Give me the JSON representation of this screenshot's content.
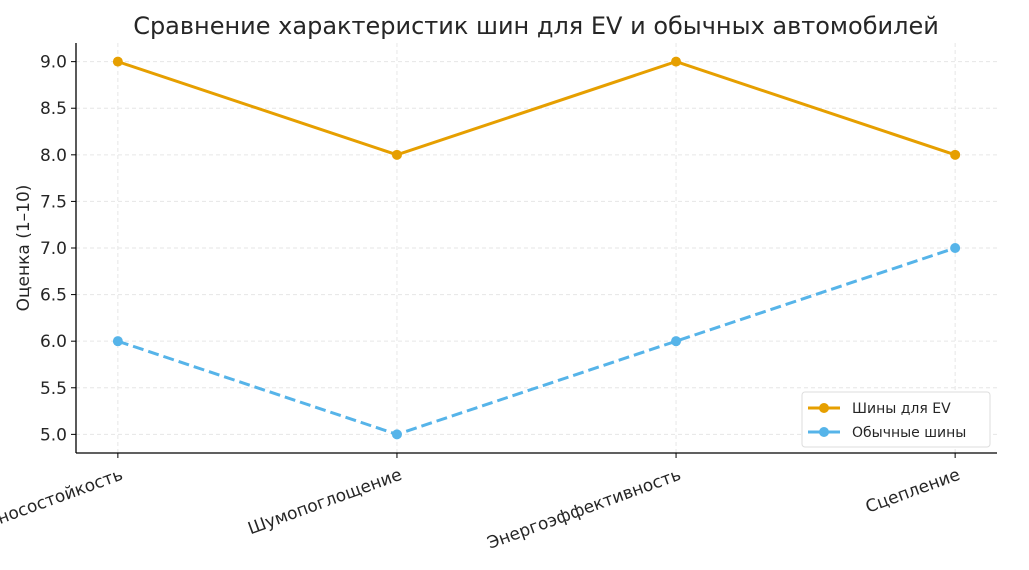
{
  "chart_data": {
    "type": "line",
    "title": "Сравнение характеристик шин для EV и обычных автомобилей",
    "xlabel": "",
    "ylabel": "Оценка (1–10)",
    "categories": [
      "Износостойкость",
      "Шумопоглощение",
      "Энергоэффективность",
      "Сцепление"
    ],
    "yticks": [
      "5.0",
      "5.5",
      "6.0",
      "6.5",
      "7.0",
      "7.5",
      "8.0",
      "8.5",
      "9.0"
    ],
    "ylim": [
      4.8,
      9.2
    ],
    "grid": true,
    "legend_position": "lower-right",
    "series": [
      {
        "name": "Шины для EV",
        "values": [
          9,
          8,
          9,
          8
        ],
        "color": "#E69F00",
        "style": "solid"
      },
      {
        "name": "Обычные шины",
        "values": [
          6,
          5,
          6,
          7
        ],
        "color": "#56B4E9",
        "style": "dashed"
      }
    ]
  }
}
